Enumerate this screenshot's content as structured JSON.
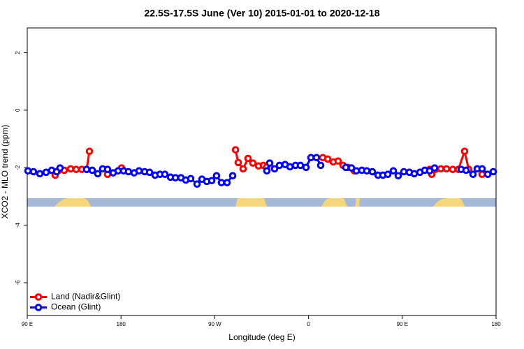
{
  "chart_data": {
    "type": "line",
    "title": "22.5S-17.5S June (Ver 10)   2015-01-01 to 2020-12-18",
    "x_label": "Longitude (deg E)",
    "y_label": "XCO2 - MLO trend (ppm)",
    "xlim": [
      90,
      540
    ],
    "ylim": [
      -7.14,
      2.86
    ],
    "xticks": [
      {
        "value": 90,
        "label": "90 E"
      },
      180,
      {
        "value": 270,
        "label": "90 W"
      },
      {
        "value": 360,
        "label": "0"
      },
      {
        "value": 450,
        "label": "90 E"
      },
      {
        "value": 540,
        "label": "180"
      }
    ],
    "yticks": [
      -6,
      -4,
      -2,
      0,
      2
    ],
    "legend": "bottom-left",
    "series": [
      {
        "name": "Land (Nadir&Glint)",
        "color": "#ff0000",
        "x": [
          116.8,
          119.5,
          125.5,
          131.6,
          136.9,
          142.3,
          147.0,
          149.7,
          null,
          167.1,
          null,
          180.5,
          null,
          289.9,
          292.5,
          297.2,
          301.9,
          306.6,
          312.0,
          316.7,
          320.0,
          null,
          373.7,
          378.4,
          383.7,
          388.4,
          393.1,
          397.8,
          403.9,
          null,
          476.3,
          478.3,
          481.7,
          487.0,
          492.4,
          498.4,
          503.8,
          509.8,
          513.8,
          null,
          526.6
        ],
        "values": [
          -2.26,
          -2.11,
          -2.09,
          -2.04,
          -2.06,
          -2.06,
          -2.06,
          -1.43,
          null,
          -2.23,
          null,
          -2.01,
          null,
          -1.38,
          -1.82,
          -2.04,
          -1.68,
          -1.84,
          -1.94,
          -1.92,
          -1.97,
          null,
          -1.65,
          -1.7,
          -1.8,
          -1.77,
          -1.92,
          -1.99,
          -2.11,
          null,
          -2.06,
          -2.23,
          -2.06,
          -2.04,
          -2.04,
          -2.06,
          -2.06,
          -1.43,
          -2.06,
          null,
          -2.23
        ]
      },
      {
        "name": "Ocean (Glint)",
        "color": "#0000ff",
        "x": [
          90.7,
          96.0,
          102.1,
          108.1,
          113.5,
          118.2,
          121.5,
          null,
          147.0,
          152.4,
          157.7,
          162.4,
          167.1,
          172.5,
          177.2,
          182.5,
          187.2,
          192.6,
          197.3,
          202.7,
          207.4,
          212.7,
          217.4,
          222.1,
          227.5,
          232.2,
          237.5,
          242.2,
          246.9,
          253.0,
          257.7,
          262.4,
          267.1,
          271.7,
          276.4,
          281.8,
          287.2,
          null,
          320.0,
          322.7,
          327.4,
          332.1,
          337.5,
          342.2,
          347.5,
          352.2,
          357.6,
          362.3,
          367.6,
          371.7,
          null,
          395.8,
          401.2,
          405.9,
          411.2,
          415.9,
          421.3,
          426.7,
          431.4,
          436.1,
          441.4,
          446.1,
          451.5,
          456.8,
          461.5,
          466.9,
          471.6,
          476.3,
          481.0,
          null,
          506.5,
          511.2,
          517.9,
          521.9,
          526.6,
          532.0,
          537.3
        ],
        "values": [
          -2.11,
          -2.14,
          -2.21,
          -2.16,
          -2.09,
          -2.14,
          -2.01,
          null,
          -2.06,
          -2.09,
          -2.21,
          -2.04,
          -2.06,
          -2.18,
          -2.11,
          -2.11,
          -2.14,
          -2.18,
          -2.11,
          -2.14,
          -2.16,
          -2.26,
          -2.23,
          -2.23,
          -2.33,
          -2.35,
          -2.35,
          -2.43,
          -2.38,
          -2.57,
          -2.4,
          -2.48,
          -2.45,
          -2.28,
          -2.52,
          -2.52,
          -2.28,
          null,
          -2.11,
          -1.84,
          -2.04,
          -1.92,
          -1.89,
          -1.97,
          -1.92,
          -1.92,
          -1.99,
          -1.65,
          -1.65,
          -1.92,
          null,
          -1.99,
          -2.01,
          -2.11,
          -2.09,
          -2.11,
          -2.14,
          -2.26,
          -2.26,
          -2.23,
          -2.11,
          -2.28,
          -2.14,
          -2.16,
          -2.21,
          -2.16,
          -2.09,
          -2.11,
          -2.01,
          null,
          -2.06,
          -2.09,
          -2.23,
          -2.04,
          -2.04,
          -2.23,
          -2.14
        ]
      }
    ]
  }
}
